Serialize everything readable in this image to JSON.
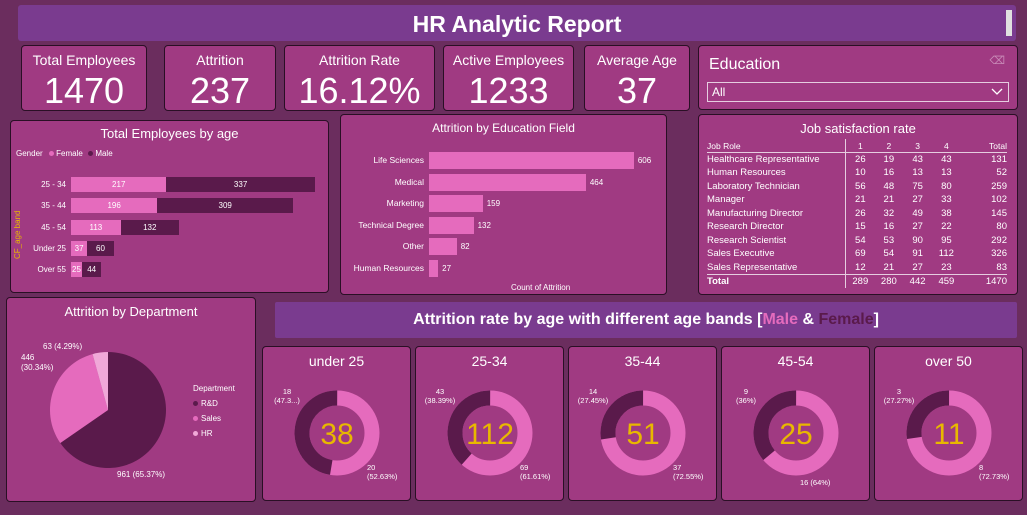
{
  "header": {
    "title": "HR Analytic Report"
  },
  "kpis": [
    {
      "label": "Total Employees",
      "value": "1470"
    },
    {
      "label": "Attrition",
      "value": "237"
    },
    {
      "label": "Attrition Rate",
      "value": "16.12%"
    },
    {
      "label": "Active Employees",
      "value": "1233"
    },
    {
      "label": "Average Age",
      "value": "37"
    }
  ],
  "education_filter": {
    "label": "Education",
    "selected": "All",
    "clear_icon": "eraser-icon",
    "dropdown_icon": "chevron-down-icon"
  },
  "colors": {
    "female": "#e56bbd",
    "male": "#5a1a4b",
    "hr": "#f0a8d8",
    "panel": "#a03a82",
    "bg": "#6b2d5e",
    "title_bar": "#7a3b8f",
    "donut_text": "#e8b800"
  },
  "age_chart": {
    "title": "Total Employees by age",
    "legend_title": "Gender",
    "legend": [
      "Female",
      "Male"
    ],
    "y_axis_label": "CF_age band",
    "chart_data": {
      "type": "bar",
      "categories": [
        "25 - 34",
        "35 - 44",
        "45 - 54",
        "Under 25",
        "Over 55"
      ],
      "series": [
        {
          "name": "Female",
          "values": [
            217,
            196,
            113,
            37,
            25
          ]
        },
        {
          "name": "Male",
          "values": [
            337,
            309,
            132,
            60,
            44
          ]
        }
      ]
    }
  },
  "edu_chart": {
    "title": "Attrition by Education Field",
    "x_axis_label": "Count of Attrition",
    "chart_data": {
      "type": "bar",
      "categories": [
        "Life Sciences",
        "Medical",
        "Marketing",
        "Technical Degree",
        "Other",
        "Human Resources"
      ],
      "values": [
        606,
        464,
        159,
        132,
        82,
        27
      ]
    }
  },
  "job_satisfaction": {
    "title": "Job satisfaction rate",
    "columns": [
      "Job Role",
      "1",
      "2",
      "3",
      "4",
      "Total"
    ],
    "rows": [
      [
        "Healthcare Representative",
        "26",
        "19",
        "43",
        "43",
        "131"
      ],
      [
        "Human Resources",
        "10",
        "16",
        "13",
        "13",
        "52"
      ],
      [
        "Laboratory Technician",
        "56",
        "48",
        "75",
        "80",
        "259"
      ],
      [
        "Manager",
        "21",
        "21",
        "27",
        "33",
        "102"
      ],
      [
        "Manufacturing Director",
        "26",
        "32",
        "49",
        "38",
        "145"
      ],
      [
        "Research Director",
        "15",
        "16",
        "27",
        "22",
        "80"
      ],
      [
        "Research Scientist",
        "54",
        "53",
        "90",
        "95",
        "292"
      ],
      [
        "Sales Executive",
        "69",
        "54",
        "91",
        "112",
        "326"
      ],
      [
        "Sales Representative",
        "12",
        "21",
        "27",
        "23",
        "83"
      ]
    ],
    "total": [
      "Total",
      "289",
      "280",
      "442",
      "459",
      "1470"
    ]
  },
  "dept_chart": {
    "title": "Attrition by Department",
    "legend_title": "Department",
    "legend": [
      "R&D",
      "Sales",
      "HR"
    ],
    "labels": [
      "961 (65.37%)",
      "446 (30.34%)",
      "63 (4.29%)"
    ],
    "chart_data": {
      "type": "pie",
      "categories": [
        "R&D",
        "Sales",
        "HR"
      ],
      "values": [
        961,
        446,
        63
      ]
    }
  },
  "band_section": {
    "title_prefix": "Attrition rate by age with different age bands [",
    "male": "Male",
    "amp": " & ",
    "female": "Female",
    "suffix": "]"
  },
  "donuts": [
    {
      "title": "under 25",
      "center": "38",
      "dark_label": "18",
      "dark_pct": "(47.3...)",
      "light_label": "20",
      "light_pct": "(52.63%)",
      "chart_data": {
        "type": "pie",
        "values": [
          18,
          20
        ]
      }
    },
    {
      "title": "25-34",
      "center": "112",
      "dark_label": "43",
      "dark_pct": "(38.39%)",
      "light_label": "69",
      "light_pct": "(61.61%)",
      "chart_data": {
        "type": "pie",
        "values": [
          43,
          69
        ]
      }
    },
    {
      "title": "35-44",
      "center": "51",
      "dark_label": "14",
      "dark_pct": "(27.45%)",
      "light_label": "37",
      "light_pct": "(72.55%)",
      "chart_data": {
        "type": "pie",
        "values": [
          14,
          37
        ]
      }
    },
    {
      "title": "45-54",
      "center": "25",
      "dark_label": "9",
      "dark_pct": "(36%)",
      "light_label": "16 (64%)",
      "light_pct": "",
      "chart_data": {
        "type": "pie",
        "values": [
          9,
          16
        ]
      }
    },
    {
      "title": "over 50",
      "center": "11",
      "dark_label": "3",
      "dark_pct": "(27.27%)",
      "light_label": "8",
      "light_pct": "(72.73%)",
      "chart_data": {
        "type": "pie",
        "values": [
          3,
          8
        ]
      }
    }
  ]
}
